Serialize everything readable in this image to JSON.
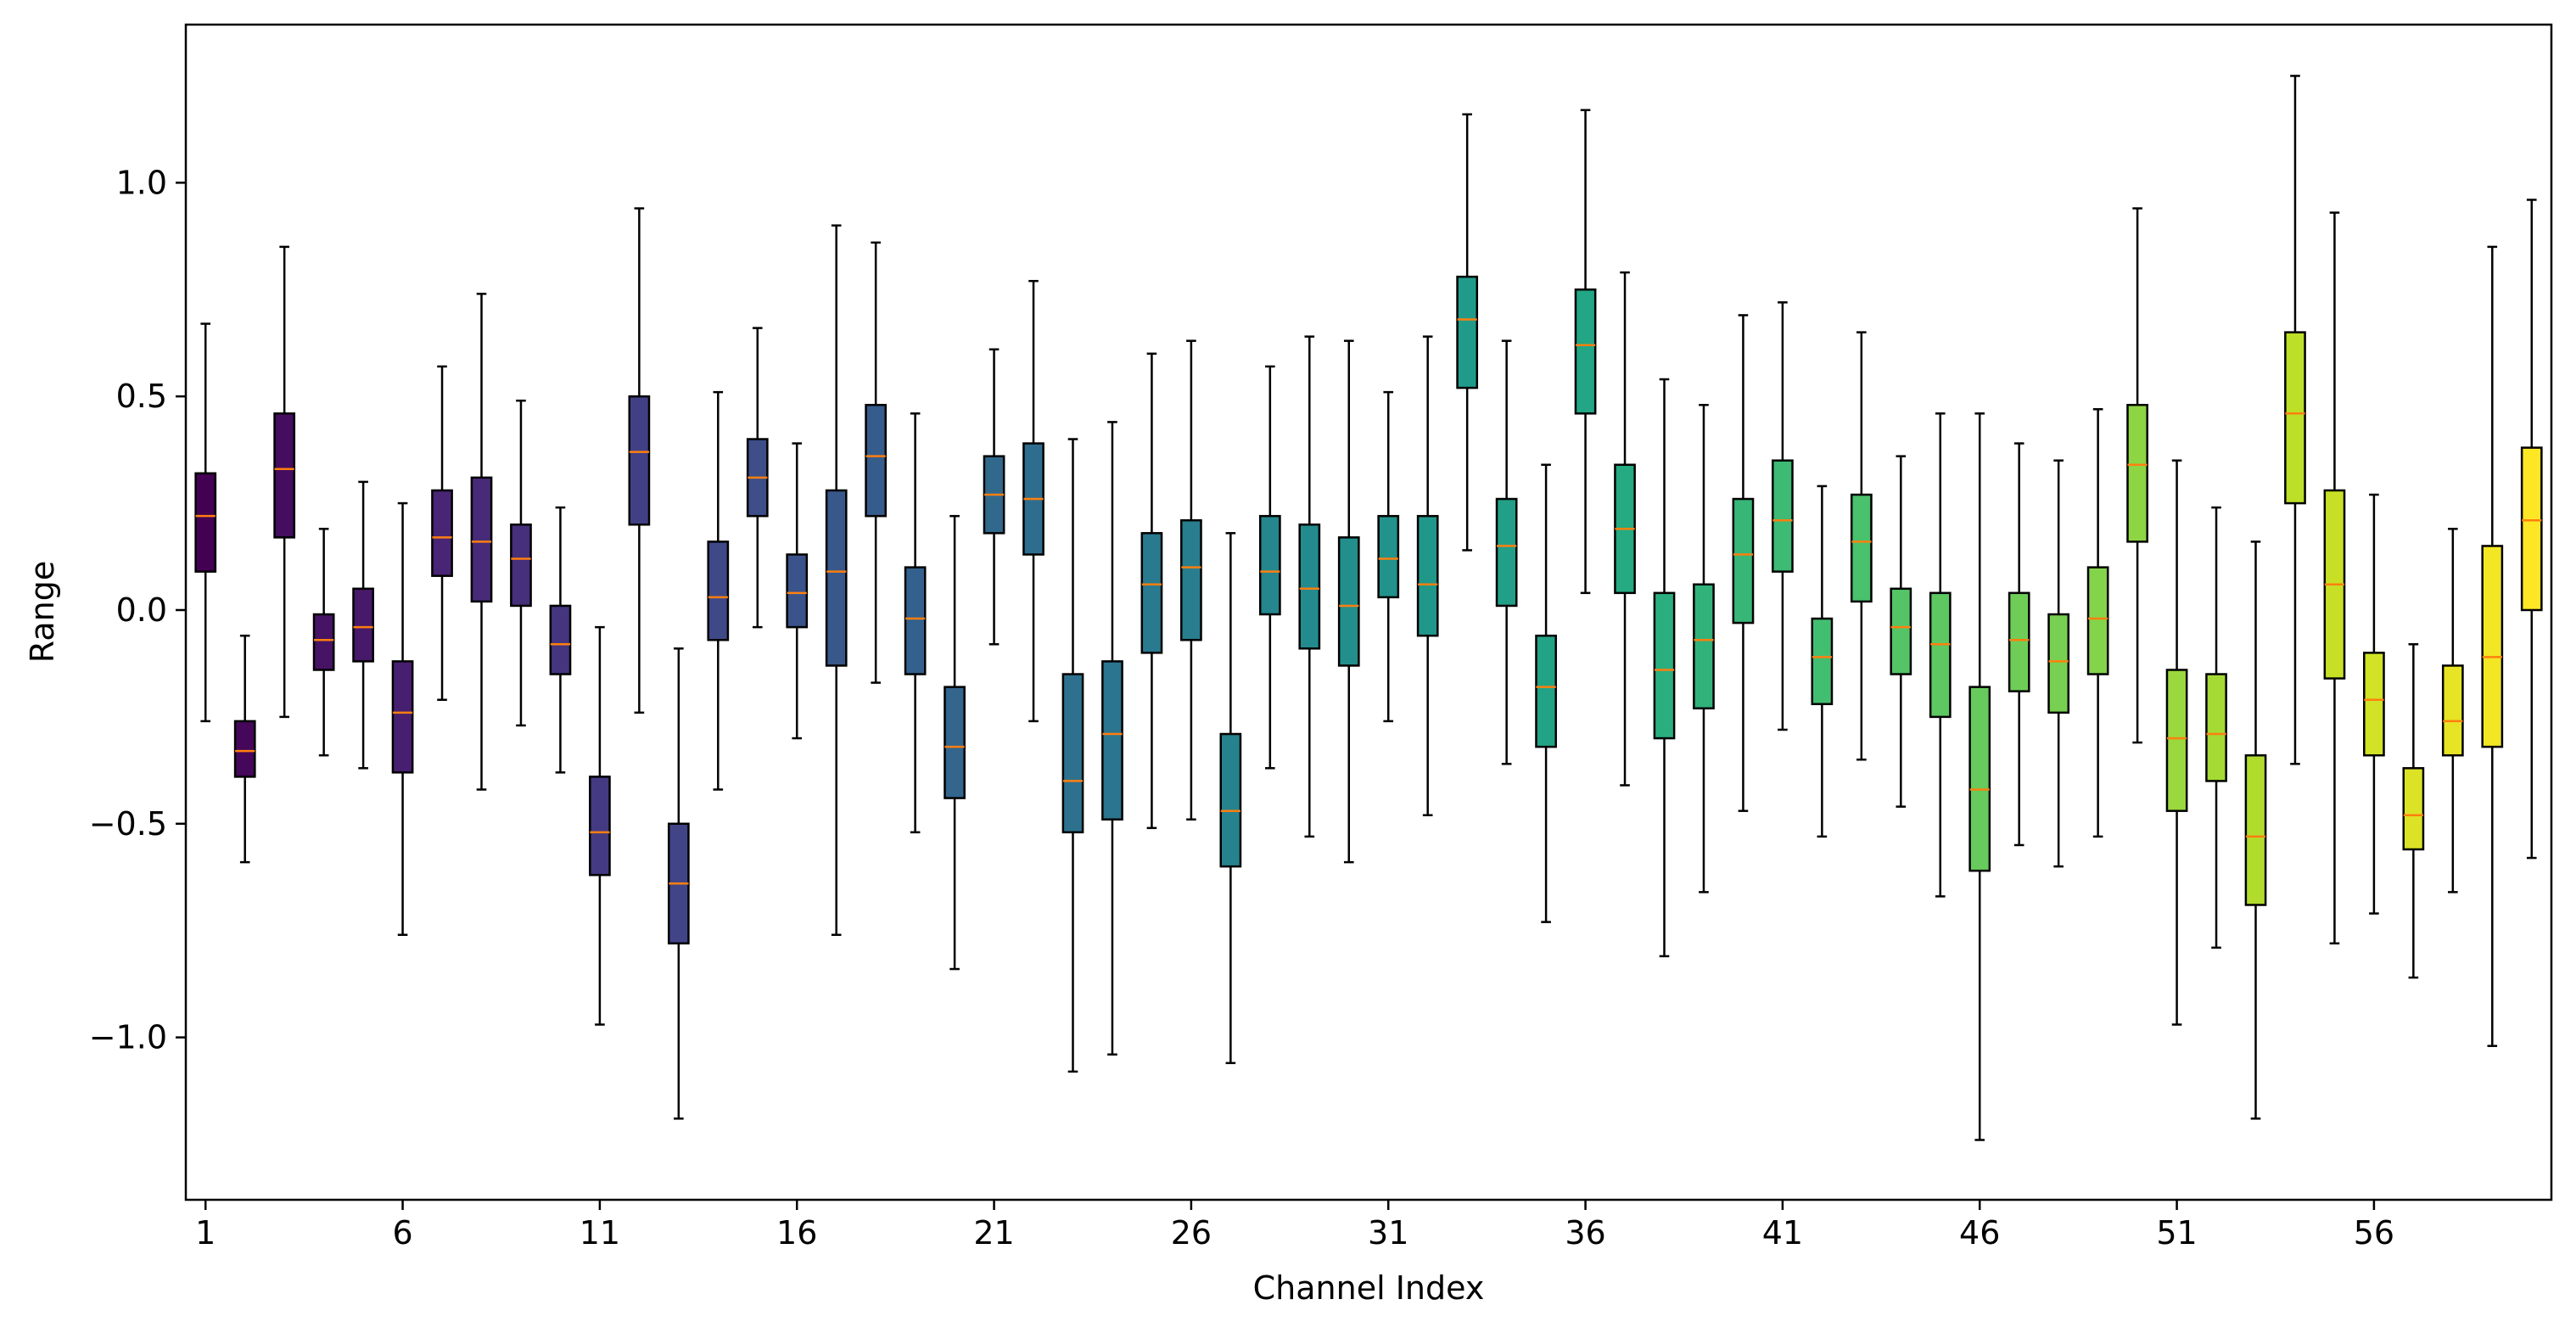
{
  "chart_data": {
    "type": "boxplot",
    "title": "",
    "xlabel": "Channel Index",
    "ylabel": "Range",
    "xlim": [
      0.5,
      60.5
    ],
    "ylim": [
      -1.38,
      1.37
    ],
    "x_ticks": [
      1,
      6,
      11,
      16,
      21,
      26,
      31,
      36,
      41,
      46,
      51,
      56
    ],
    "y_ticks": [
      1.0,
      0.5,
      0.0,
      -0.5,
      -1.0
    ],
    "y_tick_labels": [
      "1.0",
      "0.5",
      "0.0",
      "−0.5",
      "−1.0"
    ],
    "grid": false,
    "colormap": "viridis",
    "median_color": "#ff7f0e",
    "box_edge_color": "#000000",
    "boxes": [
      {
        "channel": 1,
        "whislo": -0.26,
        "q1": 0.09,
        "med": 0.22,
        "q3": 0.32,
        "whishi": 0.67
      },
      {
        "channel": 2,
        "whislo": -0.59,
        "q1": -0.39,
        "med": -0.33,
        "q3": -0.26,
        "whishi": -0.06
      },
      {
        "channel": 3,
        "whislo": -0.25,
        "q1": 0.17,
        "med": 0.33,
        "q3": 0.46,
        "whishi": 0.85
      },
      {
        "channel": 4,
        "whislo": -0.34,
        "q1": -0.14,
        "med": -0.07,
        "q3": -0.01,
        "whishi": 0.19
      },
      {
        "channel": 5,
        "whislo": -0.37,
        "q1": -0.12,
        "med": -0.04,
        "q3": 0.05,
        "whishi": 0.3
      },
      {
        "channel": 6,
        "whislo": -0.76,
        "q1": -0.38,
        "med": -0.24,
        "q3": -0.12,
        "whishi": 0.25
      },
      {
        "channel": 7,
        "whislo": -0.21,
        "q1": 0.08,
        "med": 0.17,
        "q3": 0.28,
        "whishi": 0.57
      },
      {
        "channel": 8,
        "whislo": -0.42,
        "q1": 0.02,
        "med": 0.16,
        "q3": 0.31,
        "whishi": 0.74
      },
      {
        "channel": 9,
        "whislo": -0.27,
        "q1": 0.01,
        "med": 0.12,
        "q3": 0.2,
        "whishi": 0.49
      },
      {
        "channel": 10,
        "whislo": -0.38,
        "q1": -0.15,
        "med": -0.08,
        "q3": 0.01,
        "whishi": 0.24
      },
      {
        "channel": 11,
        "whislo": -0.97,
        "q1": -0.62,
        "med": -0.52,
        "q3": -0.39,
        "whishi": -0.04
      },
      {
        "channel": 12,
        "whislo": -0.24,
        "q1": 0.2,
        "med": 0.37,
        "q3": 0.5,
        "whishi": 0.94
      },
      {
        "channel": 13,
        "whislo": -1.19,
        "q1": -0.78,
        "med": -0.64,
        "q3": -0.5,
        "whishi": -0.09
      },
      {
        "channel": 14,
        "whislo": -0.42,
        "q1": -0.07,
        "med": 0.03,
        "q3": 0.16,
        "whishi": 0.51
      },
      {
        "channel": 15,
        "whislo": -0.04,
        "q1": 0.22,
        "med": 0.31,
        "q3": 0.4,
        "whishi": 0.66
      },
      {
        "channel": 16,
        "whislo": -0.3,
        "q1": -0.04,
        "med": 0.04,
        "q3": 0.13,
        "whishi": 0.39
      },
      {
        "channel": 17,
        "whislo": -0.76,
        "q1": -0.13,
        "med": 0.09,
        "q3": 0.28,
        "whishi": 0.9
      },
      {
        "channel": 18,
        "whislo": -0.17,
        "q1": 0.22,
        "med": 0.36,
        "q3": 0.48,
        "whishi": 0.86
      },
      {
        "channel": 19,
        "whislo": -0.52,
        "q1": -0.15,
        "med": -0.02,
        "q3": 0.1,
        "whishi": 0.46
      },
      {
        "channel": 20,
        "whislo": -0.84,
        "q1": -0.44,
        "med": -0.32,
        "q3": -0.18,
        "whishi": 0.22
      },
      {
        "channel": 21,
        "whislo": -0.08,
        "q1": 0.18,
        "med": 0.27,
        "q3": 0.36,
        "whishi": 0.61
      },
      {
        "channel": 22,
        "whislo": -0.26,
        "q1": 0.13,
        "med": 0.26,
        "q3": 0.39,
        "whishi": 0.77
      },
      {
        "channel": 23,
        "whislo": -1.08,
        "q1": -0.52,
        "med": -0.4,
        "q3": -0.15,
        "whishi": 0.4
      },
      {
        "channel": 24,
        "whislo": -1.04,
        "q1": -0.49,
        "med": -0.29,
        "q3": -0.12,
        "whishi": 0.44
      },
      {
        "channel": 25,
        "whislo": -0.51,
        "q1": -0.1,
        "med": 0.06,
        "q3": 0.18,
        "whishi": 0.6
      },
      {
        "channel": 26,
        "whislo": -0.49,
        "q1": -0.07,
        "med": 0.1,
        "q3": 0.21,
        "whishi": 0.63
      },
      {
        "channel": 27,
        "whislo": -1.06,
        "q1": -0.6,
        "med": -0.47,
        "q3": -0.29,
        "whishi": 0.18
      },
      {
        "channel": 28,
        "whislo": -0.37,
        "q1": -0.01,
        "med": 0.09,
        "q3": 0.22,
        "whishi": 0.57
      },
      {
        "channel": 29,
        "whislo": -0.53,
        "q1": -0.09,
        "med": 0.05,
        "q3": 0.2,
        "whishi": 0.64
      },
      {
        "channel": 30,
        "whislo": -0.59,
        "q1": -0.13,
        "med": 0.01,
        "q3": 0.17,
        "whishi": 0.63
      },
      {
        "channel": 31,
        "whislo": -0.26,
        "q1": 0.03,
        "med": 0.12,
        "q3": 0.22,
        "whishi": 0.51
      },
      {
        "channel": 32,
        "whislo": -0.48,
        "q1": -0.06,
        "med": 0.06,
        "q3": 0.22,
        "whishi": 0.64
      },
      {
        "channel": 33,
        "whislo": 0.14,
        "q1": 0.52,
        "med": 0.68,
        "q3": 0.78,
        "whishi": 1.16
      },
      {
        "channel": 34,
        "whislo": -0.36,
        "q1": 0.01,
        "med": 0.15,
        "q3": 0.26,
        "whishi": 0.63
      },
      {
        "channel": 35,
        "whislo": -0.73,
        "q1": -0.32,
        "med": -0.18,
        "q3": -0.06,
        "whishi": 0.34
      },
      {
        "channel": 36,
        "whislo": 0.04,
        "q1": 0.46,
        "med": 0.62,
        "q3": 0.75,
        "whishi": 1.17
      },
      {
        "channel": 37,
        "whislo": -0.41,
        "q1": 0.04,
        "med": 0.19,
        "q3": 0.34,
        "whishi": 0.79
      },
      {
        "channel": 38,
        "whislo": -0.81,
        "q1": -0.3,
        "med": -0.14,
        "q3": 0.04,
        "whishi": 0.54
      },
      {
        "channel": 39,
        "whislo": -0.66,
        "q1": -0.23,
        "med": -0.07,
        "q3": 0.06,
        "whishi": 0.48
      },
      {
        "channel": 40,
        "whislo": -0.47,
        "q1": -0.03,
        "med": 0.13,
        "q3": 0.26,
        "whishi": 0.69
      },
      {
        "channel": 41,
        "whislo": -0.28,
        "q1": 0.09,
        "med": 0.21,
        "q3": 0.35,
        "whishi": 0.72
      },
      {
        "channel": 42,
        "whislo": -0.53,
        "q1": -0.22,
        "med": -0.11,
        "q3": -0.02,
        "whishi": 0.29
      },
      {
        "channel": 43,
        "whislo": -0.35,
        "q1": 0.02,
        "med": 0.16,
        "q3": 0.27,
        "whishi": 0.65
      },
      {
        "channel": 44,
        "whislo": -0.46,
        "q1": -0.15,
        "med": -0.04,
        "q3": 0.05,
        "whishi": 0.36
      },
      {
        "channel": 45,
        "whislo": -0.67,
        "q1": -0.25,
        "med": -0.08,
        "q3": 0.04,
        "whishi": 0.46
      },
      {
        "channel": 46,
        "whislo": -1.24,
        "q1": -0.61,
        "med": -0.42,
        "q3": -0.18,
        "whishi": 0.46
      },
      {
        "channel": 47,
        "whislo": -0.55,
        "q1": -0.19,
        "med": -0.07,
        "q3": 0.04,
        "whishi": 0.39
      },
      {
        "channel": 48,
        "whislo": -0.6,
        "q1": -0.24,
        "med": -0.12,
        "q3": -0.01,
        "whishi": 0.35
      },
      {
        "channel": 49,
        "whislo": -0.53,
        "q1": -0.15,
        "med": -0.02,
        "q3": 0.1,
        "whishi": 0.47
      },
      {
        "channel": 50,
        "whislo": -0.31,
        "q1": 0.16,
        "med": 0.34,
        "q3": 0.48,
        "whishi": 0.94
      },
      {
        "channel": 51,
        "whislo": -0.97,
        "q1": -0.47,
        "med": -0.3,
        "q3": -0.14,
        "whishi": 0.35
      },
      {
        "channel": 52,
        "whislo": -0.79,
        "q1": -0.4,
        "med": -0.29,
        "q3": -0.15,
        "whishi": 0.24
      },
      {
        "channel": 53,
        "whislo": -1.19,
        "q1": -0.69,
        "med": -0.53,
        "q3": -0.34,
        "whishi": 0.16
      },
      {
        "channel": 54,
        "whislo": -0.36,
        "q1": 0.25,
        "med": 0.46,
        "q3": 0.65,
        "whishi": 1.25
      },
      {
        "channel": 55,
        "whislo": -0.78,
        "q1": -0.16,
        "med": 0.06,
        "q3": 0.28,
        "whishi": 0.93
      },
      {
        "channel": 56,
        "whislo": -0.71,
        "q1": -0.34,
        "med": -0.21,
        "q3": -0.1,
        "whishi": 0.27
      },
      {
        "channel": 57,
        "whislo": -0.86,
        "q1": -0.56,
        "med": -0.48,
        "q3": -0.37,
        "whishi": -0.08
      },
      {
        "channel": 58,
        "whislo": -0.66,
        "q1": -0.34,
        "med": -0.26,
        "q3": -0.13,
        "whishi": 0.19
      },
      {
        "channel": 59,
        "whislo": -1.02,
        "q1": -0.32,
        "med": -0.11,
        "q3": 0.15,
        "whishi": 0.85
      },
      {
        "channel": 60,
        "whislo": -0.58,
        "q1": 0.0,
        "med": 0.21,
        "q3": 0.38,
        "whishi": 0.96
      }
    ]
  }
}
